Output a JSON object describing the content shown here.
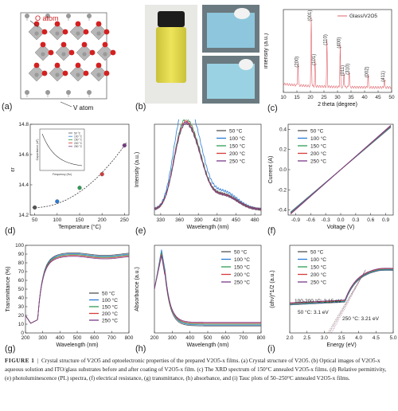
{
  "caption": {
    "label": "FIGURE 1",
    "text": "Crystal structure of V2O5 and optoelectronic properties of the prepared V2O5-x films. (a) Crystal structure of V2O5. (b) Optical images of V2O5-x aqueous solution and ITO/glass substrates before and after coating of V2O5-x film. (c) The XRD spectrum of 150°C annealed V2O5-x films. (d) Relative permittivity, (e) photoluminescence (PL) spectra, (f) electrical resistance, (g) transmittance, (h) absorbance, and (i) Tauc plots of 50–250°C annealed V2O5-x films."
  },
  "panels": {
    "a": {
      "label": "(a)",
      "o_atom": "O atom",
      "v_atom": "V atom"
    },
    "b": {
      "label": "(b)"
    },
    "c": {
      "label": "(c)"
    },
    "d": {
      "label": "(d)"
    },
    "e": {
      "label": "(e)"
    },
    "f": {
      "label": "(f)"
    },
    "g": {
      "label": "(g)"
    },
    "h": {
      "label": "(h)"
    },
    "i": {
      "label": "(i)"
    }
  },
  "colors": {
    "c50": "#555555",
    "c100": "#2a7bd6",
    "c150": "#2e9e55",
    "c200": "#d63b3b",
    "c250": "#7a3a8a",
    "xrd": "#e0636b",
    "oxygen": "#d42020",
    "vanadium": "#999999"
  },
  "chart_data": [
    {
      "panel": "c",
      "type": "line",
      "xlabel": "2 theta (degree)",
      "ylabel": "Intensity (a.u.)",
      "legend": [
        "Glass/V2O5"
      ],
      "xlim": [
        10,
        50
      ],
      "xticks": [
        10,
        15,
        20,
        25,
        30,
        35,
        40,
        45,
        50
      ],
      "peaks": [
        {
          "label": "(200)",
          "x": 15.4,
          "h": 0.32
        },
        {
          "label": "(001)",
          "x": 20.3,
          "h": 0.95
        },
        {
          "label": "(101)",
          "x": 21.7,
          "h": 0.35
        },
        {
          "label": "(110)",
          "x": 26.1,
          "h": 0.62
        },
        {
          "label": "(400)",
          "x": 31.0,
          "h": 0.58
        },
        {
          "label": "(011)",
          "x": 32.4,
          "h": 0.2
        },
        {
          "label": "(310)",
          "x": 34.3,
          "h": 0.22
        },
        {
          "label": "(002)",
          "x": 41.3,
          "h": 0.18
        },
        {
          "label": "(411)",
          "x": 47.3,
          "h": 0.12
        }
      ]
    },
    {
      "panel": "d",
      "type": "scatter",
      "xlabel": "Temperature (°C)",
      "ylabel": "εr",
      "xlim": [
        40,
        260
      ],
      "ylim": [
        14.2,
        14.8
      ],
      "xticks": [
        50,
        100,
        150,
        200,
        250
      ],
      "yticks": [
        14.2,
        14.4,
        14.6,
        14.8
      ],
      "x": [
        50,
        100,
        150,
        200,
        250
      ],
      "values": [
        14.25,
        14.29,
        14.38,
        14.47,
        14.66
      ],
      "inset": {
        "xlabel": "Frequency (Hz)",
        "ylabel": "Capacitance (nF)",
        "legend": [
          "50 °C",
          "100 °C",
          "150 °C",
          "200 °C",
          "250 °C"
        ]
      }
    },
    {
      "panel": "e",
      "type": "line",
      "xlabel": "Wavelength (nm)",
      "ylabel": "Intensity (a.u.)",
      "xlim": [
        320,
        490
      ],
      "xticks": [
        330,
        360,
        390,
        420,
        450,
        480
      ],
      "series": [
        {
          "name": "50 °C",
          "amp": 0.7
        },
        {
          "name": "100 °C",
          "amp": 0.88
        },
        {
          "name": "150 °C",
          "amp": 0.74
        },
        {
          "name": "200 °C",
          "amp": 0.72
        },
        {
          "name": "250 °C",
          "amp": 0.71
        }
      ]
    },
    {
      "panel": "f",
      "type": "line",
      "xlabel": "Voltage (V)",
      "ylabel": "Current (A)",
      "xlim": [
        -1.05,
        1.05
      ],
      "ylim": [
        -0.45,
        0.45
      ],
      "xticks": [
        -0.9,
        -0.6,
        -0.3,
        0.0,
        0.3,
        0.6,
        0.9
      ],
      "yticks": [
        -0.4,
        -0.2,
        0.0,
        0.2,
        0.4
      ],
      "series": [
        {
          "name": "50 °C",
          "slope": 0.42
        },
        {
          "name": "100 °C",
          "slope": 0.425
        },
        {
          "name": "150 °C",
          "slope": 0.43
        },
        {
          "name": "200 °C",
          "slope": 0.435
        },
        {
          "name": "250 °C",
          "slope": 0.44
        }
      ]
    },
    {
      "panel": "g",
      "type": "line",
      "xlabel": "Wavelength (nm)",
      "ylabel": "Transmittance (%)",
      "xlim": [
        200,
        800
      ],
      "ylim": [
        0,
        100
      ],
      "xticks": [
        200,
        300,
        400,
        500,
        600,
        700,
        800
      ],
      "yticks": [
        0,
        10,
        20,
        30,
        40,
        50,
        60,
        70,
        80,
        90,
        100
      ],
      "series": [
        {
          "name": "50 °C",
          "plateau": 90
        },
        {
          "name": "100 °C",
          "plateau": 89
        },
        {
          "name": "150 °C",
          "plateau": 88
        },
        {
          "name": "200 °C",
          "plateau": 87
        },
        {
          "name": "250 °C",
          "plateau": 86
        }
      ]
    },
    {
      "panel": "h",
      "type": "line",
      "xlabel": "Wavelength (nm)",
      "ylabel": "Absorbance (a.u.)",
      "xlim": [
        200,
        800
      ],
      "xticks": [
        200,
        300,
        400,
        500,
        600,
        700,
        800
      ],
      "series": [
        {
          "name": "50 °C",
          "peak": 0.9
        },
        {
          "name": "100 °C",
          "peak": 0.95
        },
        {
          "name": "150 °C",
          "peak": 0.92
        },
        {
          "name": "200 °C",
          "peak": 0.9
        },
        {
          "name": "250 °C",
          "peak": 0.88
        }
      ]
    },
    {
      "panel": "i",
      "type": "line",
      "xlabel": "Energy (eV)",
      "ylabel": "(αhν)^1/2 (a.u.)",
      "xlim": [
        2.0,
        5.0
      ],
      "xticks": [
        2.0,
        2.5,
        3.0,
        3.5,
        4.0,
        4.5,
        5.0
      ],
      "annotations": [
        "100-200 °C: 3.15 eV",
        "50 °C: 3.1 eV",
        "250 °C: 3.21 eV"
      ],
      "series": [
        {
          "name": "50 °C",
          "eg": 3.1
        },
        {
          "name": "100 °C",
          "eg": 3.15
        },
        {
          "name": "150 °C",
          "eg": 3.15
        },
        {
          "name": "200 °C",
          "eg": 3.15
        },
        {
          "name": "250 °C",
          "eg": 3.21
        }
      ]
    }
  ]
}
